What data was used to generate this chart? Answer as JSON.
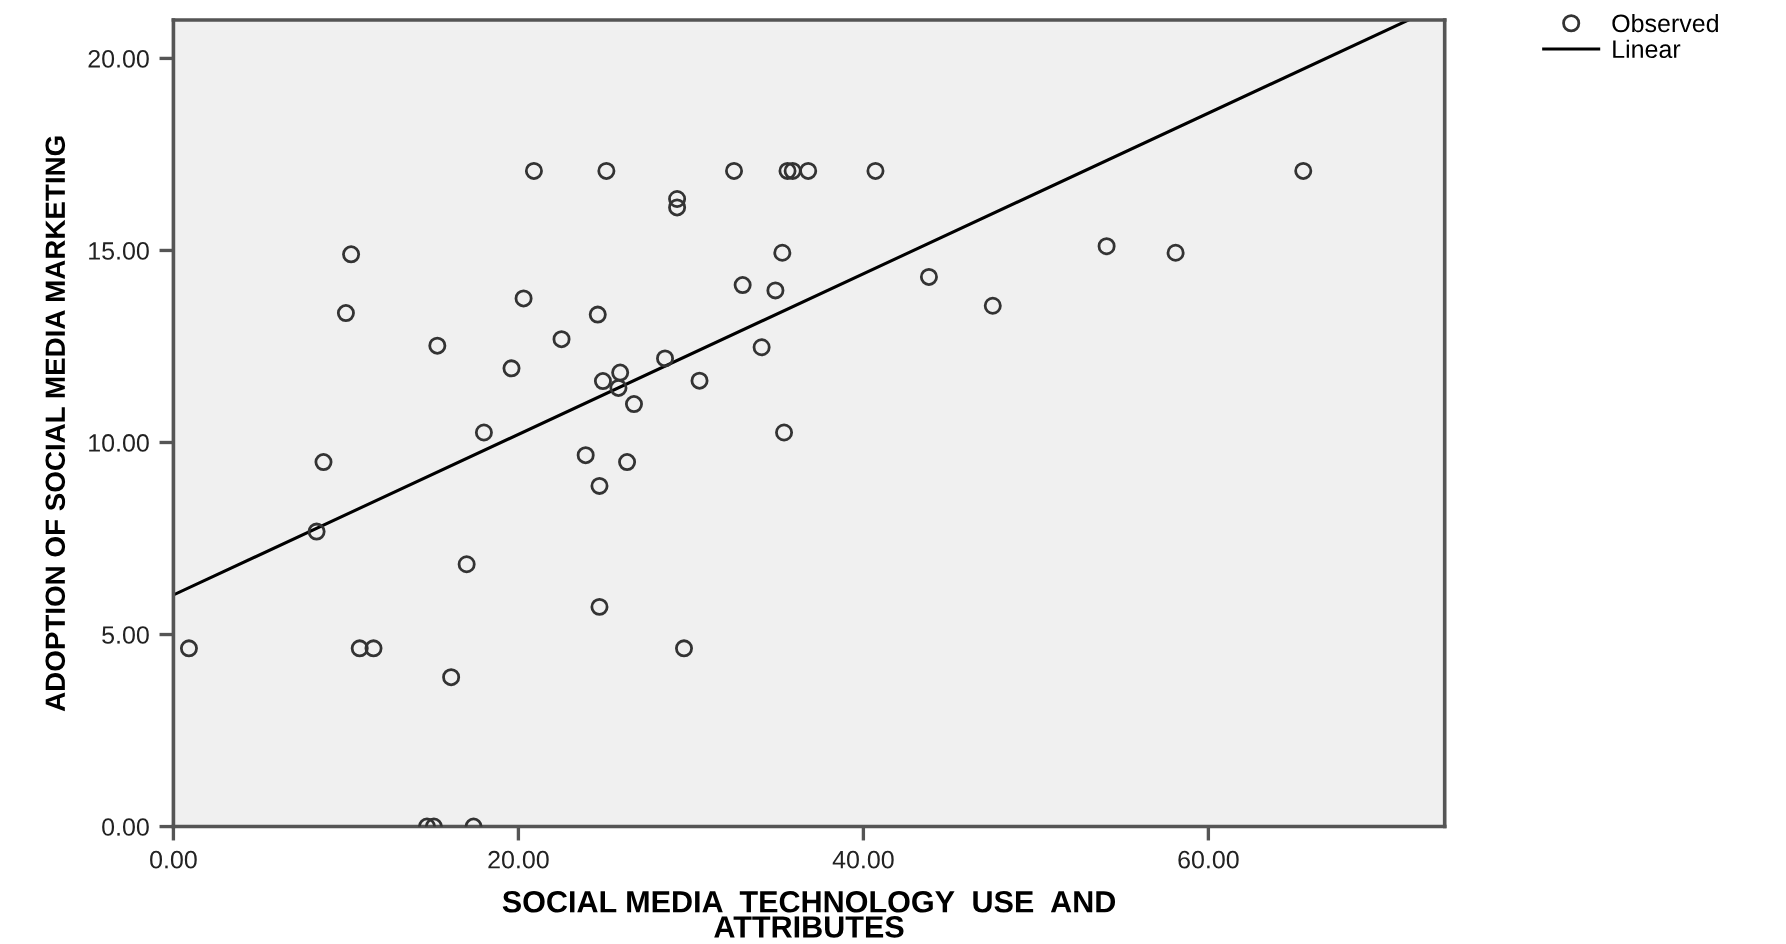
{
  "chart_data": {
    "type": "scatter",
    "xlabel": "SOCIAL MEDIA  TECHNOLOGY  USE  AND\nATTRIBUTES",
    "ylabel": "ADOPTION OF SOCIAL MEDIA MARKETING",
    "xlim": [
      0,
      73.7
    ],
    "ylim": [
      0,
      21.0
    ],
    "xticks": [
      {
        "value": 0,
        "label": "0.00"
      },
      {
        "value": 20,
        "label": "20.00"
      },
      {
        "value": 40,
        "label": "40.00"
      },
      {
        "value": 60,
        "label": "60.00"
      }
    ],
    "yticks": [
      {
        "value": 0,
        "label": "0.00"
      },
      {
        "value": 5,
        "label": "5.00"
      },
      {
        "value": 10,
        "label": "10.00"
      },
      {
        "value": 15,
        "label": "15.00"
      },
      {
        "value": 20,
        "label": "20.00"
      }
    ],
    "grid": false,
    "legend": "top right",
    "marker": "circle",
    "series": [
      {
        "name": "Observed",
        "color": "#333333",
        "x": [
          20.9,
          25.1,
          32.5,
          35.6,
          35.9,
          36.8,
          40.7,
          65.5,
          29.2,
          29.2,
          10.3,
          35.3,
          54.1,
          58.1,
          10.0,
          20.3,
          24.6,
          33.0,
          34.9,
          43.8,
          47.5,
          15.3,
          22.5,
          19.6,
          34.1,
          28.5,
          25.9,
          24.9,
          25.8,
          30.5,
          26.7,
          18.0,
          35.4,
          8.7,
          23.9,
          26.3,
          24.7,
          8.3,
          17.0,
          24.7,
          0.9,
          10.8,
          11.6,
          29.6,
          16.1,
          14.7,
          15.1,
          17.4
        ],
        "values": [
          17.07,
          17.07,
          17.07,
          17.07,
          17.07,
          17.07,
          17.07,
          17.07,
          16.34,
          16.12,
          14.9,
          14.94,
          15.11,
          14.94,
          13.37,
          13.75,
          13.33,
          14.1,
          13.96,
          14.31,
          13.56,
          12.52,
          12.69,
          11.93,
          12.48,
          12.19,
          11.82,
          11.6,
          11.42,
          11.61,
          11.0,
          10.26,
          10.26,
          9.49,
          9.67,
          9.49,
          8.87,
          7.68,
          6.83,
          5.72,
          4.64,
          4.64,
          4.64,
          4.64,
          3.89,
          0.0,
          0.0,
          0.0
        ]
      },
      {
        "name": "Linear",
        "type": "line",
        "color": "#000000",
        "marker": "none",
        "line_style": "solid",
        "x": [
          0,
          71.6
        ],
        "values": [
          6.03,
          21.0
        ]
      }
    ]
  }
}
